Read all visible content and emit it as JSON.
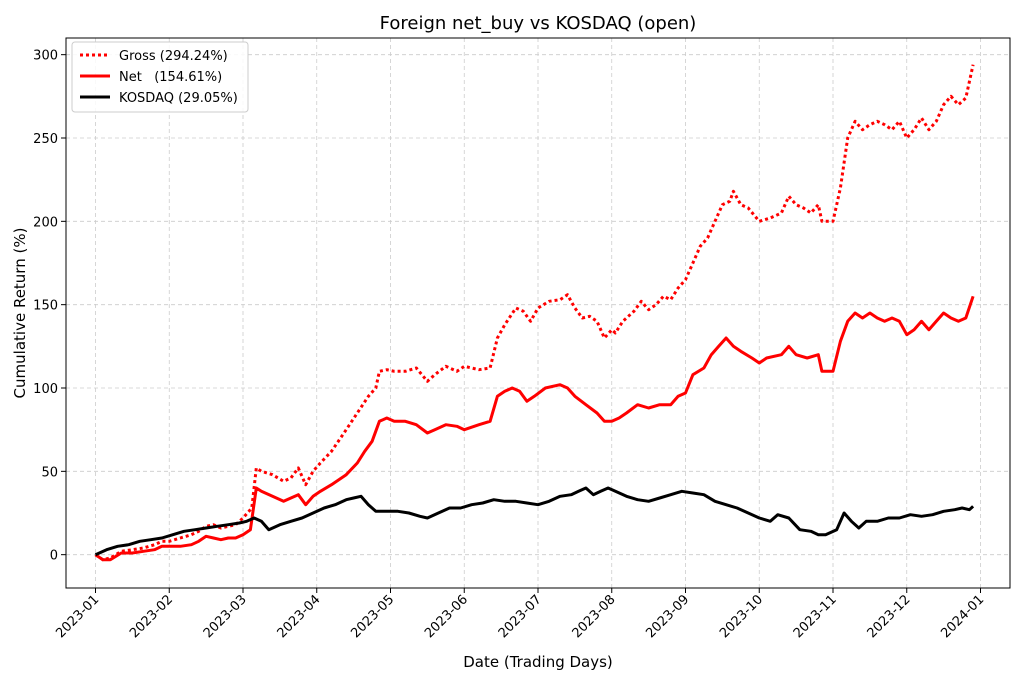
{
  "chart_data": {
    "type": "line",
    "title": "Foreign net_buy vs KOSDAQ (open)",
    "xlabel": "Date (Trading Days)",
    "ylabel": "Cumulative Return (%)",
    "ylim": [
      -20,
      310
    ],
    "yticks": [
      0,
      50,
      100,
      150,
      200,
      250,
      300
    ],
    "xlim": [
      -0.4,
      12.4
    ],
    "xticks": [
      {
        "pos": 0,
        "label": "2023-01"
      },
      {
        "pos": 1,
        "label": "2023-02"
      },
      {
        "pos": 2,
        "label": "2023-03"
      },
      {
        "pos": 3,
        "label": "2023-04"
      },
      {
        "pos": 4,
        "label": "2023-05"
      },
      {
        "pos": 5,
        "label": "2023-06"
      },
      {
        "pos": 6,
        "label": "2023-07"
      },
      {
        "pos": 7,
        "label": "2023-08"
      },
      {
        "pos": 8,
        "label": "2023-09"
      },
      {
        "pos": 9,
        "label": "2023-10"
      },
      {
        "pos": 10,
        "label": "2023-11"
      },
      {
        "pos": 11,
        "label": "2023-12"
      },
      {
        "pos": 12,
        "label": "2024-01"
      }
    ],
    "grid": true,
    "legend_position": "top-left",
    "series": [
      {
        "name": "Gross (294.24%)",
        "color": "#ff0000",
        "style": "dotted",
        "points": [
          [
            0.0,
            0
          ],
          [
            0.1,
            -3
          ],
          [
            0.2,
            -2
          ],
          [
            0.35,
            2
          ],
          [
            0.5,
            3
          ],
          [
            0.65,
            4
          ],
          [
            0.8,
            6
          ],
          [
            0.9,
            8
          ],
          [
            1.0,
            8
          ],
          [
            1.15,
            10
          ],
          [
            1.3,
            12
          ],
          [
            1.4,
            14
          ],
          [
            1.5,
            17
          ],
          [
            1.6,
            18
          ],
          [
            1.7,
            16
          ],
          [
            1.8,
            17
          ],
          [
            1.9,
            18
          ],
          [
            2.0,
            22
          ],
          [
            2.12,
            28
          ],
          [
            2.18,
            52
          ],
          [
            2.25,
            50
          ],
          [
            2.4,
            48
          ],
          [
            2.55,
            44
          ],
          [
            2.65,
            46
          ],
          [
            2.75,
            52
          ],
          [
            2.85,
            42
          ],
          [
            2.95,
            50
          ],
          [
            3.05,
            55
          ],
          [
            3.2,
            62
          ],
          [
            3.4,
            75
          ],
          [
            3.55,
            85
          ],
          [
            3.7,
            95
          ],
          [
            3.8,
            100
          ],
          [
            3.85,
            110
          ],
          [
            3.95,
            111
          ],
          [
            4.05,
            110
          ],
          [
            4.2,
            110
          ],
          [
            4.35,
            112
          ],
          [
            4.5,
            104
          ],
          [
            4.6,
            108
          ],
          [
            4.75,
            113
          ],
          [
            4.9,
            110
          ],
          [
            5.0,
            113
          ],
          [
            5.2,
            111
          ],
          [
            5.35,
            112
          ],
          [
            5.45,
            130
          ],
          [
            5.55,
            138
          ],
          [
            5.7,
            148
          ],
          [
            5.8,
            146
          ],
          [
            5.9,
            140
          ],
          [
            6.0,
            148
          ],
          [
            6.15,
            152
          ],
          [
            6.3,
            153
          ],
          [
            6.4,
            156
          ],
          [
            6.5,
            148
          ],
          [
            6.6,
            142
          ],
          [
            6.7,
            143
          ],
          [
            6.8,
            140
          ],
          [
            6.9,
            130
          ],
          [
            7.0,
            135
          ],
          [
            7.05,
            133
          ],
          [
            7.15,
            140
          ],
          [
            7.3,
            146
          ],
          [
            7.4,
            152
          ],
          [
            7.5,
            147
          ],
          [
            7.6,
            150
          ],
          [
            7.7,
            155
          ],
          [
            7.8,
            153
          ],
          [
            7.9,
            160
          ],
          [
            8.0,
            165
          ],
          [
            8.1,
            175
          ],
          [
            8.2,
            185
          ],
          [
            8.3,
            190
          ],
          [
            8.4,
            200
          ],
          [
            8.5,
            210
          ],
          [
            8.6,
            212
          ],
          [
            8.65,
            218
          ],
          [
            8.75,
            210
          ],
          [
            8.85,
            208
          ],
          [
            9.0,
            200
          ],
          [
            9.15,
            202
          ],
          [
            9.3,
            205
          ],
          [
            9.4,
            215
          ],
          [
            9.5,
            210
          ],
          [
            9.6,
            208
          ],
          [
            9.7,
            205
          ],
          [
            9.8,
            210
          ],
          [
            9.85,
            200
          ],
          [
            10.0,
            200
          ],
          [
            10.1,
            220
          ],
          [
            10.2,
            250
          ],
          [
            10.3,
            260
          ],
          [
            10.4,
            255
          ],
          [
            10.5,
            258
          ],
          [
            10.6,
            260
          ],
          [
            10.7,
            258
          ],
          [
            10.8,
            255
          ],
          [
            10.9,
            260
          ],
          [
            11.0,
            250
          ],
          [
            11.1,
            255
          ],
          [
            11.2,
            262
          ],
          [
            11.3,
            255
          ],
          [
            11.4,
            260
          ],
          [
            11.5,
            270
          ],
          [
            11.6,
            275
          ],
          [
            11.7,
            270
          ],
          [
            11.8,
            274
          ],
          [
            11.9,
            294
          ]
        ]
      },
      {
        "name": "Net   (154.61%)",
        "color": "#ff0000",
        "style": "solid",
        "points": [
          [
            0.0,
            0
          ],
          [
            0.1,
            -3
          ],
          [
            0.2,
            -3
          ],
          [
            0.35,
            1
          ],
          [
            0.5,
            1
          ],
          [
            0.65,
            2
          ],
          [
            0.8,
            3
          ],
          [
            0.9,
            5
          ],
          [
            1.0,
            5
          ],
          [
            1.15,
            5
          ],
          [
            1.3,
            6
          ],
          [
            1.4,
            8
          ],
          [
            1.5,
            11
          ],
          [
            1.6,
            10
          ],
          [
            1.7,
            9
          ],
          [
            1.8,
            10
          ],
          [
            1.9,
            10
          ],
          [
            2.0,
            12
          ],
          [
            2.1,
            15
          ],
          [
            2.18,
            40
          ],
          [
            2.25,
            38
          ],
          [
            2.4,
            35
          ],
          [
            2.55,
            32
          ],
          [
            2.65,
            34
          ],
          [
            2.75,
            36
          ],
          [
            2.85,
            30
          ],
          [
            2.95,
            35
          ],
          [
            3.05,
            38
          ],
          [
            3.2,
            42
          ],
          [
            3.4,
            48
          ],
          [
            3.55,
            55
          ],
          [
            3.65,
            62
          ],
          [
            3.75,
            68
          ],
          [
            3.85,
            80
          ],
          [
            3.95,
            82
          ],
          [
            4.05,
            80
          ],
          [
            4.2,
            80
          ],
          [
            4.35,
            78
          ],
          [
            4.5,
            73
          ],
          [
            4.6,
            75
          ],
          [
            4.75,
            78
          ],
          [
            4.9,
            77
          ],
          [
            5.0,
            75
          ],
          [
            5.2,
            78
          ],
          [
            5.35,
            80
          ],
          [
            5.45,
            95
          ],
          [
            5.55,
            98
          ],
          [
            5.65,
            100
          ],
          [
            5.75,
            98
          ],
          [
            5.85,
            92
          ],
          [
            5.95,
            95
          ],
          [
            6.1,
            100
          ],
          [
            6.3,
            102
          ],
          [
            6.4,
            100
          ],
          [
            6.5,
            95
          ],
          [
            6.65,
            90
          ],
          [
            6.8,
            85
          ],
          [
            6.9,
            80
          ],
          [
            7.0,
            80
          ],
          [
            7.1,
            82
          ],
          [
            7.2,
            85
          ],
          [
            7.35,
            90
          ],
          [
            7.5,
            88
          ],
          [
            7.65,
            90
          ],
          [
            7.8,
            90
          ],
          [
            7.9,
            95
          ],
          [
            8.0,
            97
          ],
          [
            8.1,
            108
          ],
          [
            8.25,
            112
          ],
          [
            8.35,
            120
          ],
          [
            8.45,
            125
          ],
          [
            8.55,
            130
          ],
          [
            8.65,
            125
          ],
          [
            8.75,
            122
          ],
          [
            8.9,
            118
          ],
          [
            9.0,
            115
          ],
          [
            9.1,
            118
          ],
          [
            9.3,
            120
          ],
          [
            9.4,
            125
          ],
          [
            9.5,
            120
          ],
          [
            9.65,
            118
          ],
          [
            9.8,
            120
          ],
          [
            9.85,
            110
          ],
          [
            10.0,
            110
          ],
          [
            10.1,
            128
          ],
          [
            10.2,
            140
          ],
          [
            10.3,
            145
          ],
          [
            10.4,
            142
          ],
          [
            10.5,
            145
          ],
          [
            10.6,
            142
          ],
          [
            10.7,
            140
          ],
          [
            10.8,
            142
          ],
          [
            10.9,
            140
          ],
          [
            11.0,
            132
          ],
          [
            11.1,
            135
          ],
          [
            11.2,
            140
          ],
          [
            11.3,
            135
          ],
          [
            11.4,
            140
          ],
          [
            11.5,
            145
          ],
          [
            11.6,
            142
          ],
          [
            11.7,
            140
          ],
          [
            11.8,
            142
          ],
          [
            11.9,
            155
          ]
        ]
      },
      {
        "name": "KOSDAQ (29.05%)",
        "color": "#000000",
        "style": "solid",
        "points": [
          [
            0.0,
            0
          ],
          [
            0.15,
            3
          ],
          [
            0.3,
            5
          ],
          [
            0.45,
            6
          ],
          [
            0.6,
            8
          ],
          [
            0.75,
            9
          ],
          [
            0.9,
            10
          ],
          [
            1.05,
            12
          ],
          [
            1.2,
            14
          ],
          [
            1.35,
            15
          ],
          [
            1.5,
            16
          ],
          [
            1.65,
            17
          ],
          [
            1.8,
            18
          ],
          [
            1.95,
            19
          ],
          [
            2.05,
            20
          ],
          [
            2.15,
            22
          ],
          [
            2.25,
            20
          ],
          [
            2.35,
            15
          ],
          [
            2.5,
            18
          ],
          [
            2.65,
            20
          ],
          [
            2.8,
            22
          ],
          [
            2.95,
            25
          ],
          [
            3.1,
            28
          ],
          [
            3.25,
            30
          ],
          [
            3.4,
            33
          ],
          [
            3.5,
            34
          ],
          [
            3.6,
            35
          ],
          [
            3.7,
            30
          ],
          [
            3.8,
            26
          ],
          [
            3.95,
            26
          ],
          [
            4.1,
            26
          ],
          [
            4.25,
            25
          ],
          [
            4.4,
            23
          ],
          [
            4.5,
            22
          ],
          [
            4.65,
            25
          ],
          [
            4.8,
            28
          ],
          [
            4.95,
            28
          ],
          [
            5.1,
            30
          ],
          [
            5.25,
            31
          ],
          [
            5.4,
            33
          ],
          [
            5.55,
            32
          ],
          [
            5.7,
            32
          ],
          [
            5.85,
            31
          ],
          [
            6.0,
            30
          ],
          [
            6.15,
            32
          ],
          [
            6.3,
            35
          ],
          [
            6.45,
            36
          ],
          [
            6.55,
            38
          ],
          [
            6.65,
            40
          ],
          [
            6.75,
            36
          ],
          [
            6.85,
            38
          ],
          [
            6.95,
            40
          ],
          [
            7.05,
            38
          ],
          [
            7.2,
            35
          ],
          [
            7.35,
            33
          ],
          [
            7.5,
            32
          ],
          [
            7.65,
            34
          ],
          [
            7.8,
            36
          ],
          [
            7.95,
            38
          ],
          [
            8.1,
            37
          ],
          [
            8.25,
            36
          ],
          [
            8.4,
            32
          ],
          [
            8.55,
            30
          ],
          [
            8.7,
            28
          ],
          [
            8.85,
            25
          ],
          [
            9.0,
            22
          ],
          [
            9.15,
            20
          ],
          [
            9.25,
            24
          ],
          [
            9.4,
            22
          ],
          [
            9.55,
            15
          ],
          [
            9.7,
            14
          ],
          [
            9.8,
            12
          ],
          [
            9.9,
            12
          ],
          [
            10.05,
            15
          ],
          [
            10.15,
            25
          ],
          [
            10.25,
            20
          ],
          [
            10.35,
            16
          ],
          [
            10.45,
            20
          ],
          [
            10.6,
            20
          ],
          [
            10.75,
            22
          ],
          [
            10.9,
            22
          ],
          [
            11.05,
            24
          ],
          [
            11.2,
            23
          ],
          [
            11.35,
            24
          ],
          [
            11.5,
            26
          ],
          [
            11.65,
            27
          ],
          [
            11.75,
            28
          ],
          [
            11.85,
            27
          ],
          [
            11.9,
            29
          ]
        ]
      }
    ]
  }
}
